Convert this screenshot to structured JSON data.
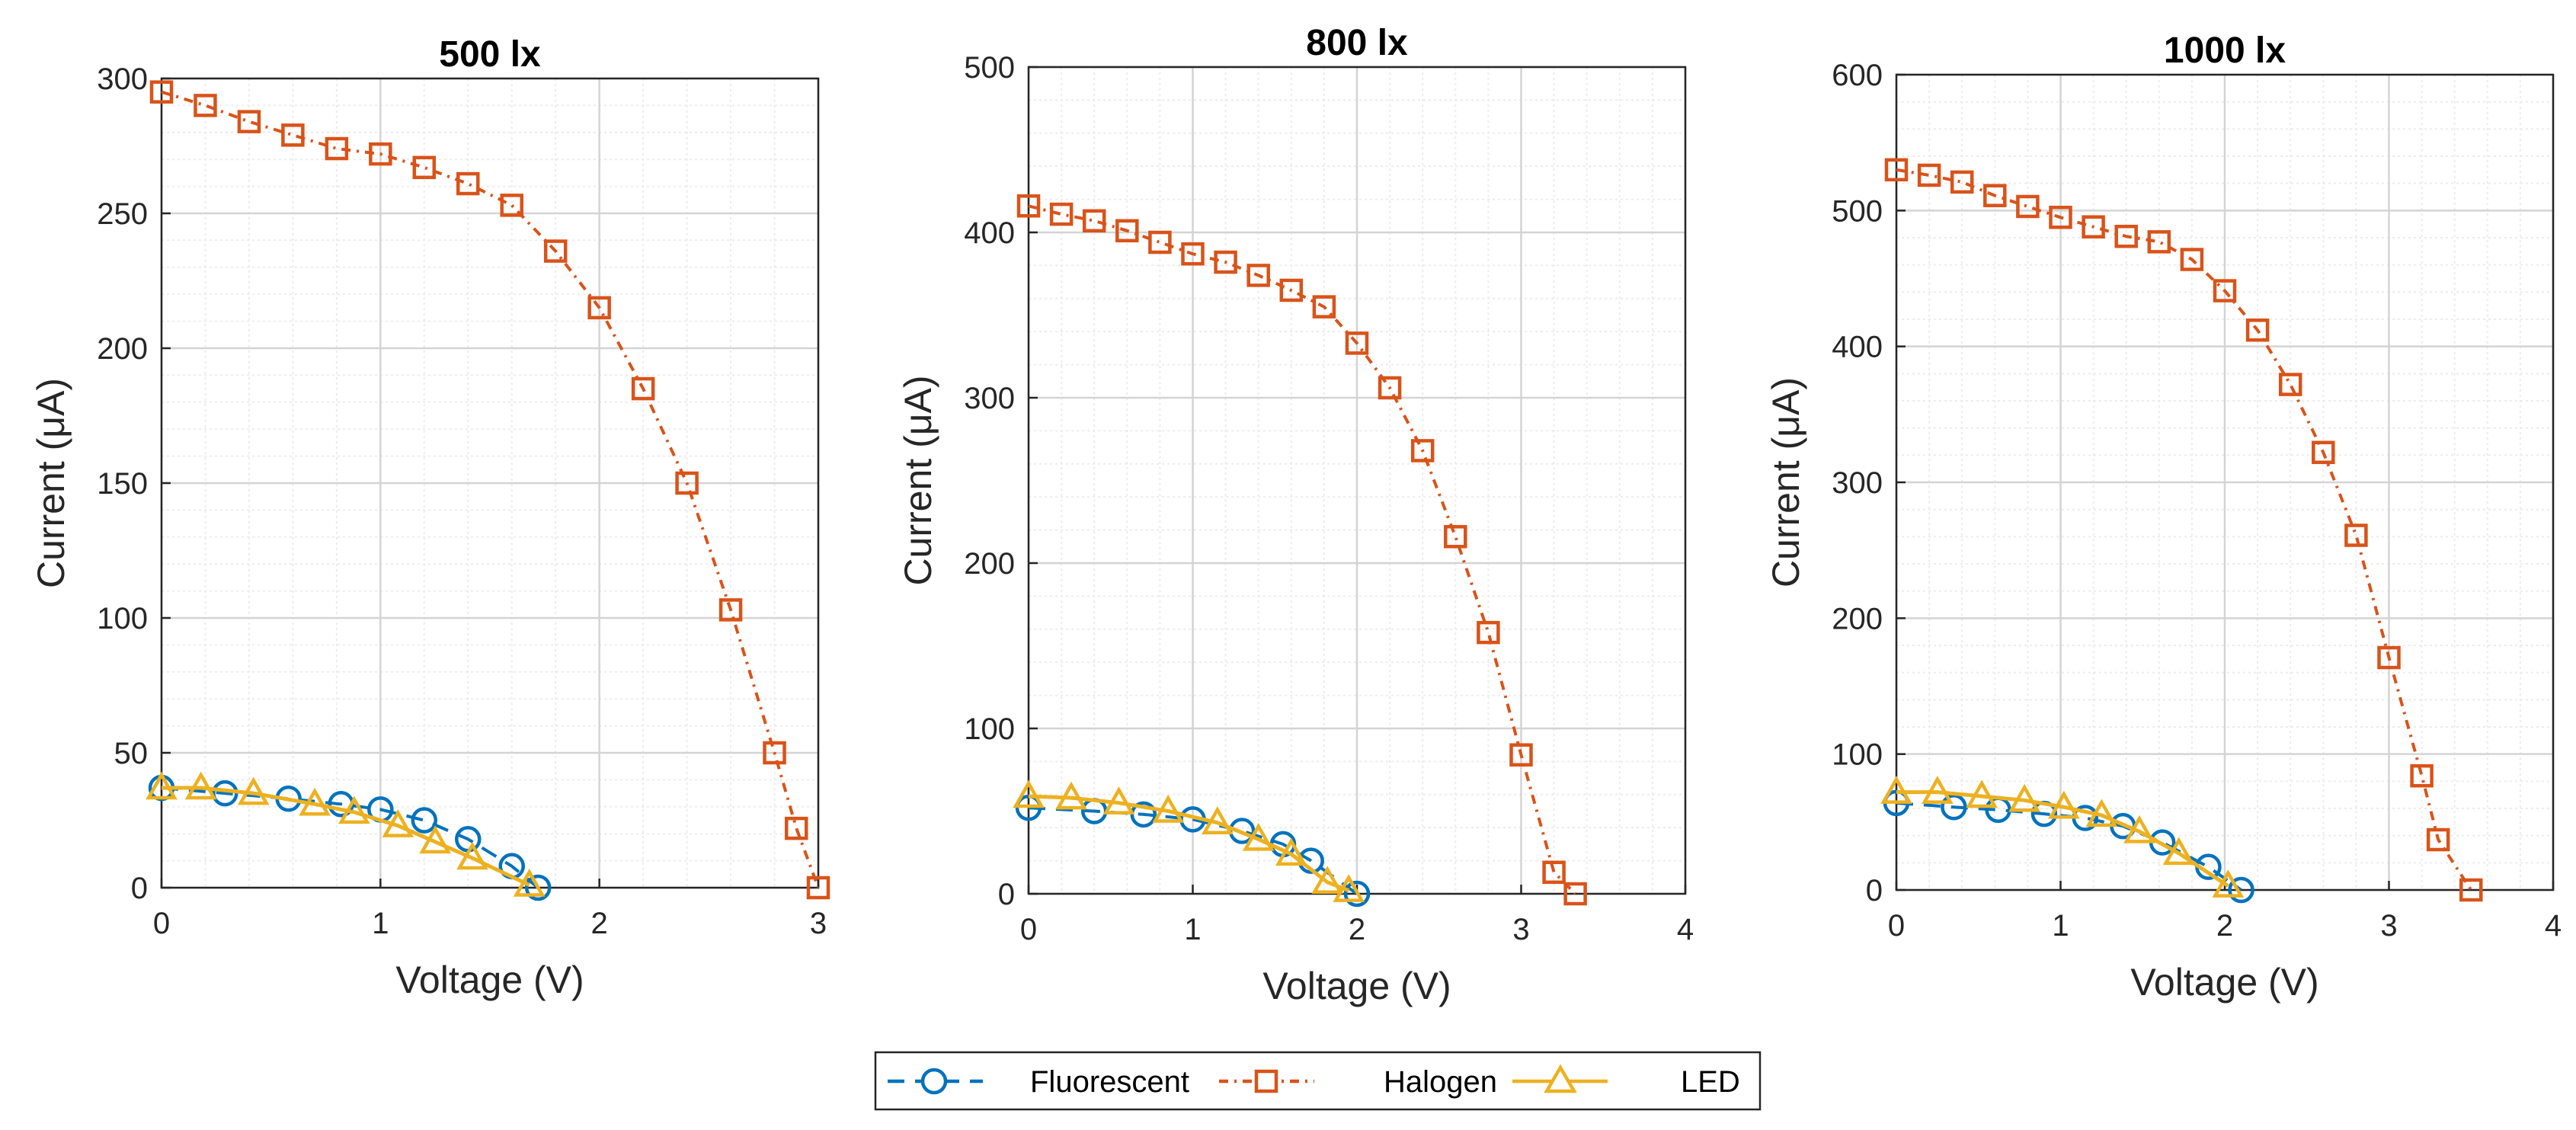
{
  "colors": {
    "Fluorescent": "#0072BD",
    "Halogen": "#D95319",
    "LED": "#EDB120",
    "major_grid": "#d4d4d4",
    "minor_grid": "#ececec"
  },
  "legend": {
    "placement": "bottom-center",
    "entries": [
      {
        "name": "Fluorescent",
        "line": "dashed",
        "marker": "circle"
      },
      {
        "name": "Halogen",
        "line": "dash-dot",
        "marker": "square"
      },
      {
        "name": "LED",
        "line": "solid",
        "marker": "triangle"
      }
    ]
  },
  "chart_data": [
    {
      "type": "line",
      "title": "500 lx",
      "xlabel": "Voltage (V)",
      "ylabel": "Current (μA)",
      "xlim": [
        0,
        3
      ],
      "ylim": [
        0,
        300
      ],
      "xticks": [
        0,
        1,
        2,
        3
      ],
      "yticks": [
        0,
        50,
        100,
        150,
        200,
        250,
        300
      ],
      "grid": true,
      "minor_grid": true,
      "series": [
        {
          "name": "Fluorescent",
          "x": [
            0,
            0.29,
            0.58,
            0.82,
            1.0,
            1.2,
            1.4,
            1.6,
            1.72
          ],
          "y": [
            37,
            35,
            33,
            31,
            29,
            25,
            18,
            8,
            0
          ]
        },
        {
          "name": "Halogen",
          "x": [
            0,
            0.2,
            0.4,
            0.6,
            0.8,
            1.0,
            1.2,
            1.4,
            1.6,
            1.8,
            2.0,
            2.2,
            2.4,
            2.6,
            2.8,
            2.9,
            3.0
          ],
          "y": [
            295,
            290,
            284,
            279,
            274,
            272,
            267,
            261,
            253,
            236,
            215,
            185,
            150,
            103,
            50,
            22,
            0
          ]
        },
        {
          "name": "LED",
          "x": [
            0,
            0.18,
            0.42,
            0.7,
            0.88,
            1.08,
            1.25,
            1.42,
            1.68
          ],
          "y": [
            37,
            37,
            35,
            31,
            28,
            23,
            17,
            11,
            1
          ]
        }
      ]
    },
    {
      "type": "line",
      "title": "800 lx",
      "xlabel": "Voltage (V)",
      "ylabel": "Current (μA)",
      "xlim": [
        0,
        4
      ],
      "ylim": [
        0,
        500
      ],
      "xticks": [
        0,
        1,
        2,
        3,
        4
      ],
      "yticks": [
        0,
        100,
        200,
        300,
        400,
        500
      ],
      "grid": true,
      "minor_grid": true,
      "series": [
        {
          "name": "Fluorescent",
          "x": [
            0,
            0.4,
            0.7,
            1.0,
            1.3,
            1.55,
            1.72,
            2.0
          ],
          "y": [
            52,
            50,
            48,
            45,
            38,
            30,
            20,
            0
          ]
        },
        {
          "name": "Halogen",
          "x": [
            0,
            0.2,
            0.4,
            0.6,
            0.8,
            1.0,
            1.2,
            1.4,
            1.6,
            1.8,
            2.0,
            2.2,
            2.4,
            2.6,
            2.8,
            3.0,
            3.2,
            3.33
          ],
          "y": [
            416,
            411,
            407,
            401,
            394,
            387,
            382,
            374,
            365,
            355,
            333,
            306,
            268,
            216,
            158,
            84,
            13,
            0
          ]
        },
        {
          "name": "LED",
          "x": [
            0,
            0.26,
            0.55,
            0.85,
            1.15,
            1.4,
            1.6,
            1.82,
            1.95
          ],
          "y": [
            59,
            58,
            55,
            50,
            43,
            33,
            24,
            7,
            2
          ]
        }
      ]
    },
    {
      "type": "line",
      "title": "1000 lx",
      "xlabel": "Voltage (V)",
      "ylabel": "Current (μA)",
      "xlim": [
        0,
        4
      ],
      "ylim": [
        0,
        600
      ],
      "xticks": [
        0,
        1,
        2,
        3,
        4
      ],
      "yticks": [
        0,
        100,
        200,
        300,
        400,
        500,
        600
      ],
      "grid": true,
      "minor_grid": true,
      "series": [
        {
          "name": "Fluorescent",
          "x": [
            0,
            0.35,
            0.62,
            0.9,
            1.15,
            1.38,
            1.62,
            1.9,
            2.1
          ],
          "y": [
            64,
            61,
            59,
            56,
            53,
            47,
            35,
            17,
            0
          ]
        },
        {
          "name": "Halogen",
          "x": [
            0,
            0.2,
            0.4,
            0.6,
            0.8,
            1.0,
            1.2,
            1.4,
            1.6,
            1.8,
            2.0,
            2.2,
            2.4,
            2.6,
            2.8,
            3.0,
            3.2,
            3.3,
            3.5
          ],
          "y": [
            530,
            526,
            521,
            511,
            503,
            495,
            488,
            481,
            477,
            464,
            441,
            412,
            372,
            322,
            261,
            171,
            84,
            37,
            0
          ]
        },
        {
          "name": "LED",
          "x": [
            0,
            0.25,
            0.52,
            0.78,
            1.02,
            1.25,
            1.48,
            1.72,
            2.02
          ],
          "y": [
            72,
            72,
            69,
            66,
            61,
            55,
            43,
            27,
            3
          ]
        }
      ]
    }
  ]
}
